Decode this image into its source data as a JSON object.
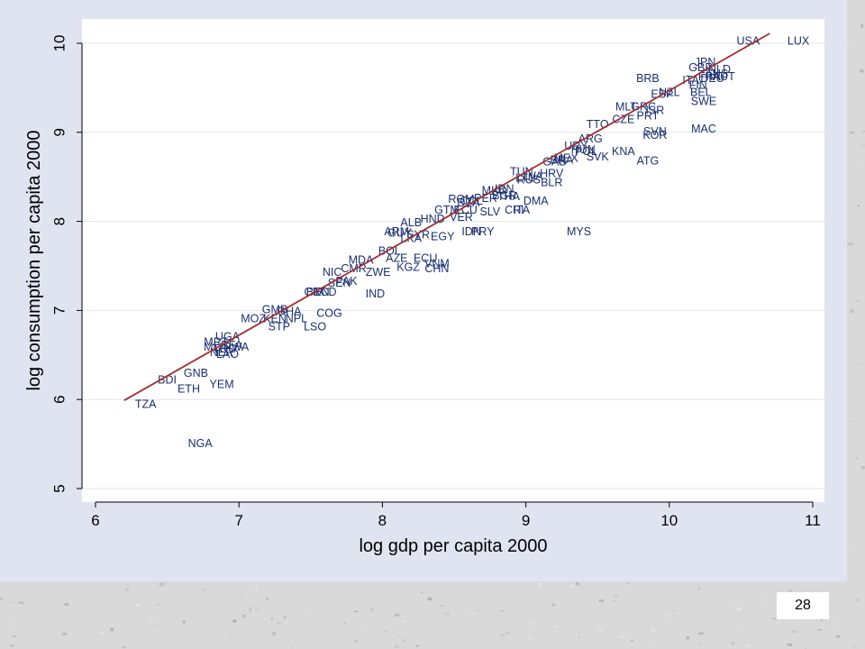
{
  "slide": {
    "number": "28"
  },
  "colors": {
    "line": "#a03030",
    "point_label": "#1a2f70",
    "grid": "#dfe4f0",
    "panel": "#dfe4f0",
    "plot": "#ffffff"
  },
  "chart_data": {
    "type": "scatter",
    "title": "",
    "xlabel": "log gdp per capita 2000",
    "ylabel": "log consumption per capita 2000",
    "xlim": [
      5.9,
      11.1
    ],
    "ylim": [
      4.95,
      10.3
    ],
    "xticks": [
      6,
      7,
      8,
      9,
      10,
      11
    ],
    "yticks": [
      5,
      6,
      7,
      8,
      9,
      10
    ],
    "grid": true,
    "legend": "none",
    "fit_line": {
      "x": [
        6.2,
        10.7
      ],
      "y": [
        5.99,
        10.11
      ]
    },
    "points": [
      {
        "label": "USA",
        "x": 10.55,
        "y": 10.02
      },
      {
        "label": "LUX",
        "x": 10.9,
        "y": 10.02
      },
      {
        "label": "BRB",
        "x": 9.85,
        "y": 9.6
      },
      {
        "label": "GBR",
        "x": 10.22,
        "y": 9.72
      },
      {
        "label": "JPN",
        "x": 10.25,
        "y": 9.78
      },
      {
        "label": "NLD",
        "x": 10.35,
        "y": 9.7
      },
      {
        "label": "AUS",
        "x": 10.33,
        "y": 9.65
      },
      {
        "label": "FRA",
        "x": 10.28,
        "y": 9.62
      },
      {
        "label": "DEU",
        "x": 10.3,
        "y": 9.6
      },
      {
        "label": "AUT",
        "x": 10.38,
        "y": 9.62
      },
      {
        "label": "ITA",
        "x": 10.15,
        "y": 9.58
      },
      {
        "label": "FIN",
        "x": 10.2,
        "y": 9.52
      },
      {
        "label": "BEL",
        "x": 10.22,
        "y": 9.44
      },
      {
        "label": "ESP",
        "x": 9.95,
        "y": 9.42
      },
      {
        "label": "NZL",
        "x": 10.0,
        "y": 9.44
      },
      {
        "label": "SWE",
        "x": 10.24,
        "y": 9.34
      },
      {
        "label": "MLT",
        "x": 9.7,
        "y": 9.28
      },
      {
        "label": "GRC",
        "x": 9.82,
        "y": 9.28
      },
      {
        "label": "ISR",
        "x": 9.9,
        "y": 9.24
      },
      {
        "label": "PRT",
        "x": 9.85,
        "y": 9.18
      },
      {
        "label": "CZE",
        "x": 9.68,
        "y": 9.14
      },
      {
        "label": "TTO",
        "x": 9.5,
        "y": 9.08
      },
      {
        "label": "SVN",
        "x": 9.9,
        "y": 9.0
      },
      {
        "label": "KOR",
        "x": 9.9,
        "y": 8.96
      },
      {
        "label": "MAC",
        "x": 10.24,
        "y": 9.03
      },
      {
        "label": "ARG",
        "x": 9.45,
        "y": 8.92
      },
      {
        "label": "URY",
        "x": 9.35,
        "y": 8.84
      },
      {
        "label": "HUN",
        "x": 9.4,
        "y": 8.8
      },
      {
        "label": "POL",
        "x": 9.42,
        "y": 8.78
      },
      {
        "label": "MEX",
        "x": 9.28,
        "y": 8.7
      },
      {
        "label": "SVK",
        "x": 9.5,
        "y": 8.72
      },
      {
        "label": "KNA",
        "x": 9.68,
        "y": 8.78
      },
      {
        "label": "GAB",
        "x": 9.2,
        "y": 8.66
      },
      {
        "label": "BRA",
        "x": 9.25,
        "y": 8.68
      },
      {
        "label": "ATG",
        "x": 9.85,
        "y": 8.67
      },
      {
        "label": "TUN",
        "x": 8.97,
        "y": 8.55
      },
      {
        "label": "LTU",
        "x": 9.0,
        "y": 8.48
      },
      {
        "label": "LVA",
        "x": 9.05,
        "y": 8.5
      },
      {
        "label": "RUS",
        "x": 9.02,
        "y": 8.46
      },
      {
        "label": "HRV",
        "x": 9.18,
        "y": 8.53
      },
      {
        "label": "BLR",
        "x": 9.18,
        "y": 8.43
      },
      {
        "label": "MKD",
        "x": 8.78,
        "y": 8.34
      },
      {
        "label": "IRN",
        "x": 8.85,
        "y": 8.36
      },
      {
        "label": "BGR",
        "x": 8.85,
        "y": 8.28
      },
      {
        "label": "THA",
        "x": 8.88,
        "y": 8.27
      },
      {
        "label": "PER",
        "x": 8.72,
        "y": 8.25
      },
      {
        "label": "DMA",
        "x": 9.07,
        "y": 8.22
      },
      {
        "label": "ROM",
        "x": 8.55,
        "y": 8.24
      },
      {
        "label": "COL",
        "x": 8.62,
        "y": 8.22
      },
      {
        "label": "DZA",
        "x": 8.6,
        "y": 8.2
      },
      {
        "label": "GTM",
        "x": 8.45,
        "y": 8.12
      },
      {
        "label": "ECU",
        "x": 8.58,
        "y": 8.12
      },
      {
        "label": "SLV",
        "x": 8.75,
        "y": 8.1
      },
      {
        "label": "CRI",
        "x": 8.92,
        "y": 8.12
      },
      {
        "label": "ITA2",
        "x": 8.97,
        "y": 8.12
      },
      {
        "label": "ALB",
        "x": 8.2,
        "y": 7.98
      },
      {
        "label": "HND",
        "x": 8.35,
        "y": 8.02
      },
      {
        "label": "VER",
        "x": 8.55,
        "y": 8.04
      },
      {
        "label": "ARM",
        "x": 8.1,
        "y": 7.88
      },
      {
        "label": "GUY",
        "x": 8.12,
        "y": 7.86
      },
      {
        "label": "SYR",
        "x": 8.25,
        "y": 7.84
      },
      {
        "label": "LKA",
        "x": 8.2,
        "y": 7.8
      },
      {
        "label": "EGY",
        "x": 8.42,
        "y": 7.82
      },
      {
        "label": "IDN",
        "x": 8.62,
        "y": 7.88
      },
      {
        "label": "PRY",
        "x": 8.7,
        "y": 7.88
      },
      {
        "label": "MYS",
        "x": 9.37,
        "y": 7.88
      },
      {
        "label": "BOL",
        "x": 8.05,
        "y": 7.66
      },
      {
        "label": "MDA",
        "x": 7.85,
        "y": 7.56
      },
      {
        "label": "AZE",
        "x": 8.1,
        "y": 7.58
      },
      {
        "label": "ECU2",
        "x": 8.3,
        "y": 7.58
      },
      {
        "label": "NIC",
        "x": 7.65,
        "y": 7.42
      },
      {
        "label": "CMR",
        "x": 7.8,
        "y": 7.46
      },
      {
        "label": "ZWE",
        "x": 7.97,
        "y": 7.42
      },
      {
        "label": "KGZ",
        "x": 8.18,
        "y": 7.48
      },
      {
        "label": "VNM",
        "x": 8.38,
        "y": 7.52
      },
      {
        "label": "CHN",
        "x": 8.38,
        "y": 7.46
      },
      {
        "label": "PAK",
        "x": 7.75,
        "y": 7.32
      },
      {
        "label": "SEN",
        "x": 7.7,
        "y": 7.3
      },
      {
        "label": "IND",
        "x": 7.95,
        "y": 7.18
      },
      {
        "label": "CIV",
        "x": 7.52,
        "y": 7.2
      },
      {
        "label": "BEN",
        "x": 7.55,
        "y": 7.2
      },
      {
        "label": "TCD",
        "x": 7.6,
        "y": 7.2
      },
      {
        "label": "GMB",
        "x": 7.25,
        "y": 7.0
      },
      {
        "label": "GHA",
        "x": 7.35,
        "y": 6.98
      },
      {
        "label": "MOZ",
        "x": 7.1,
        "y": 6.9
      },
      {
        "label": "KEN",
        "x": 7.25,
        "y": 6.9
      },
      {
        "label": "NPL",
        "x": 7.4,
        "y": 6.9
      },
      {
        "label": "COG",
        "x": 7.63,
        "y": 6.96
      },
      {
        "label": "STP",
        "x": 7.28,
        "y": 6.81
      },
      {
        "label": "LSO",
        "x": 7.53,
        "y": 6.81
      },
      {
        "label": "UGA",
        "x": 6.92,
        "y": 6.7
      },
      {
        "label": "MRT",
        "x": 6.84,
        "y": 6.64
      },
      {
        "label": "MLI",
        "x": 6.82,
        "y": 6.58
      },
      {
        "label": "BFA",
        "x": 6.95,
        "y": 6.6
      },
      {
        "label": "TGO",
        "x": 6.9,
        "y": 6.56
      },
      {
        "label": "RWA",
        "x": 6.98,
        "y": 6.58
      },
      {
        "label": "LAO",
        "x": 6.92,
        "y": 6.5
      },
      {
        "label": "NER",
        "x": 6.88,
        "y": 6.52
      },
      {
        "label": "BDI",
        "x": 6.5,
        "y": 6.21
      },
      {
        "label": "GNB",
        "x": 6.7,
        "y": 6.29
      },
      {
        "label": "ETH",
        "x": 6.65,
        "y": 6.11
      },
      {
        "label": "YEM",
        "x": 6.88,
        "y": 6.16
      },
      {
        "label": "TZA",
        "x": 6.35,
        "y": 5.94
      },
      {
        "label": "NGA",
        "x": 6.73,
        "y": 5.5
      }
    ]
  }
}
